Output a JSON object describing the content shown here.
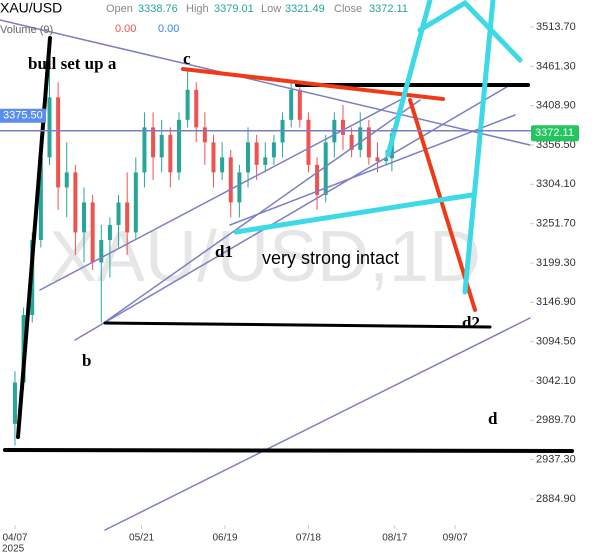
{
  "chart_data": {
    "type": "candlestick",
    "title": "XAU/USD",
    "ohlc_labels": [
      "Open",
      "High",
      "Low",
      "Close"
    ],
    "ohlc_values": [
      3338.76,
      3379.01,
      3321.49,
      3372.11
    ],
    "volume_label": "Volume (9)",
    "volume_values": [
      "0.00",
      "0.00"
    ],
    "watermark": "XAU/USD,1D",
    "year_label": "2025",
    "up_color": "#26a69a",
    "down_color": "#ef5350",
    "grid": false,
    "x": [
      0,
      3,
      6,
      9,
      12,
      15,
      18,
      21,
      24,
      27,
      30,
      33,
      36,
      39,
      42,
      45,
      48,
      51,
      54,
      57,
      60,
      63,
      66,
      69,
      72,
      75,
      78,
      81,
      84,
      87,
      90,
      93,
      96,
      99,
      102,
      105,
      108,
      111,
      114,
      117,
      120,
      123,
      126,
      129,
      131
    ],
    "open": [
      2985,
      3040,
      3130,
      3230,
      3340,
      3420,
      3300,
      3320,
      3240,
      3280,
      3200,
      3230,
      3250,
      3280,
      3240,
      3320,
      3380,
      3340,
      3370,
      3320,
      3390,
      3430,
      3380,
      3360,
      3320,
      3340,
      3280,
      3320,
      3360,
      3330,
      3340,
      3360,
      3390,
      3430,
      3390,
      3330,
      3290,
      3360,
      3390,
      3370,
      3350,
      3380,
      3340,
      3335,
      3338.76
    ],
    "high": [
      3055,
      3140,
      3240,
      3358,
      3500,
      3440,
      3360,
      3330,
      3300,
      3290,
      3250,
      3260,
      3290,
      3320,
      3340,
      3400,
      3400,
      3390,
      3380,
      3400,
      3455,
      3440,
      3400,
      3370,
      3360,
      3350,
      3330,
      3380,
      3370,
      3360,
      3370,
      3400,
      3440,
      3440,
      3400,
      3340,
      3370,
      3400,
      3410,
      3380,
      3400,
      3390,
      3360,
      3350,
      3379.01
    ],
    "low": [
      2956,
      3030,
      3120,
      3220,
      3330,
      3270,
      3260,
      3210,
      3200,
      3190,
      3120,
      3180,
      3220,
      3210,
      3230,
      3300,
      3310,
      3320,
      3300,
      3310,
      3380,
      3360,
      3330,
      3300,
      3310,
      3260,
      3260,
      3300,
      3310,
      3320,
      3330,
      3340,
      3380,
      3380,
      3320,
      3270,
      3280,
      3340,
      3350,
      3340,
      3340,
      3330,
      3320,
      3330,
      3321.49
    ],
    "close": [
      3040,
      3130,
      3230,
      3340,
      3420,
      3300,
      3320,
      3240,
      3280,
      3200,
      3230,
      3250,
      3280,
      3240,
      3320,
      3380,
      3340,
      3370,
      3320,
      3390,
      3430,
      3380,
      3360,
      3320,
      3340,
      3280,
      3320,
      3360,
      3330,
      3340,
      3360,
      3390,
      3430,
      3390,
      3330,
      3290,
      3360,
      3390,
      3370,
      3350,
      3380,
      3340,
      3335,
      3338.76,
      3372.11
    ],
    "xlim": [
      -5.2,
      179
    ],
    "ylim": [
      2850.2,
      3549.7
    ],
    "xticks": [
      {
        "value": 0,
        "label": "04/07"
      },
      {
        "value": 44,
        "label": "05/21"
      },
      {
        "value": 73,
        "label": "06/19"
      },
      {
        "value": 102,
        "label": "07/18"
      },
      {
        "value": 132,
        "label": "08/17"
      },
      {
        "value": 153,
        "label": "09/07"
      }
    ],
    "yticks": [
      {
        "value": 3513.7,
        "label": "3513.70"
      },
      {
        "value": 3461.3,
        "label": "3461.30"
      },
      {
        "value": 3408.9,
        "label": "3408.90"
      },
      {
        "value": 3356.5,
        "label": "3356.50"
      },
      {
        "value": 3304.1,
        "label": "3304.10"
      },
      {
        "value": 3251.7,
        "label": "3251.70"
      },
      {
        "value": 3199.3,
        "label": "3199.30"
      },
      {
        "value": 3146.9,
        "label": "3146.90"
      },
      {
        "value": 3094.5,
        "label": "3094.50"
      },
      {
        "value": 3042.1,
        "label": "3042.10"
      },
      {
        "value": 2989.7,
        "label": "2989.70"
      },
      {
        "value": 2937.3,
        "label": "2937.30"
      },
      {
        "value": 2884.9,
        "label": "2884.90"
      }
    ],
    "price_line": {
      "value": 3375.5,
      "label": "3375.50",
      "color": "#7b7fc4"
    },
    "last_price": {
      "value": 3372.11,
      "label": "3372.11",
      "color": "#22c55e"
    },
    "annotations": [
      "bull set up a",
      "c",
      "d1",
      "very strong intact",
      "b",
      "d2",
      "d"
    ]
  }
}
